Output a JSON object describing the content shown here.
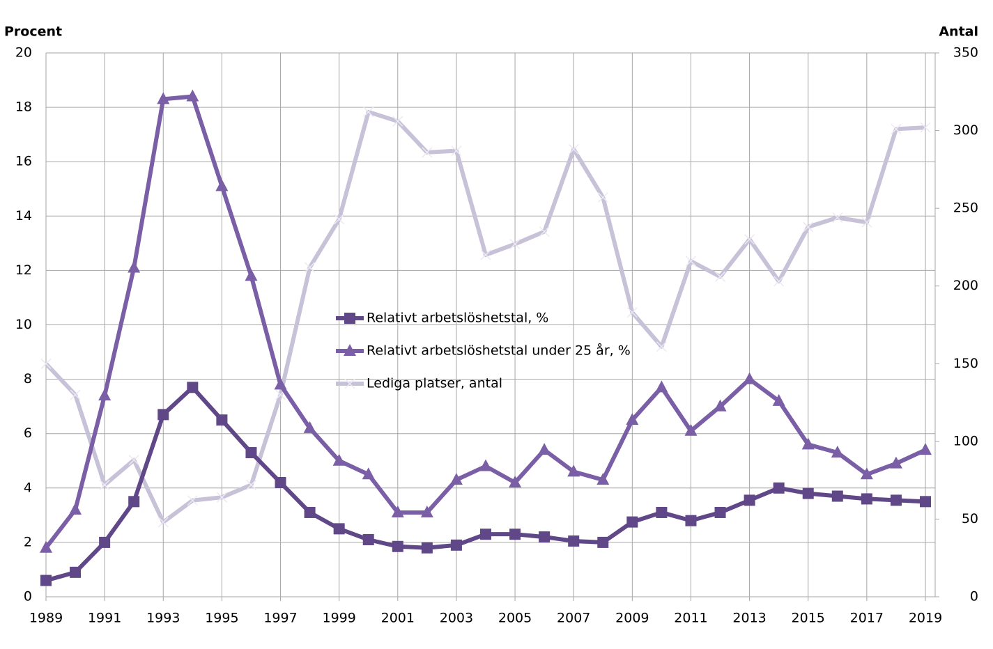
{
  "chart_data": {
    "type": "line",
    "y_title": "Procent",
    "y2_title": "Antal",
    "x": [
      1989,
      1990,
      1991,
      1992,
      1993,
      1994,
      1995,
      1996,
      1997,
      1998,
      1999,
      2000,
      2001,
      2002,
      2003,
      2004,
      2005,
      2006,
      2007,
      2008,
      2009,
      2010,
      2011,
      2012,
      2013,
      2014,
      2015,
      2016,
      2017,
      2018,
      2019
    ],
    "xlim": [
      1989,
      2019
    ],
    "xticks": [
      1989,
      1991,
      1993,
      1995,
      1997,
      1999,
      2001,
      2003,
      2005,
      2007,
      2009,
      2011,
      2013,
      2015,
      2017,
      2019
    ],
    "ylim": [
      0,
      20
    ],
    "yticks": [
      0,
      2,
      4,
      6,
      8,
      10,
      12,
      14,
      16,
      18,
      20
    ],
    "y2lim": [
      0,
      350
    ],
    "y2ticks": [
      0,
      50,
      100,
      150,
      200,
      250,
      300,
      350
    ],
    "grid": true,
    "series": [
      {
        "name": "Relativt arbetslöshetstal, %",
        "color": "#5f4788",
        "marker": "square",
        "values": [
          0.6,
          0.9,
          2.0,
          3.5,
          6.7,
          7.7,
          6.5,
          5.3,
          4.2,
          3.1,
          2.5,
          2.1,
          1.85,
          1.8,
          1.9,
          2.3,
          2.3,
          2.2,
          2.05,
          2.0,
          2.75,
          3.1,
          2.8,
          3.1,
          3.55,
          4.0,
          3.8,
          3.7,
          3.6,
          3.55,
          3.5
        ]
      },
      {
        "name": "Relativt arbetslöshetstal under 25 år, %",
        "color": "#7a5ea6",
        "marker": "triangle",
        "values": [
          1.8,
          3.2,
          7.4,
          12.1,
          18.3,
          18.4,
          15.1,
          11.8,
          7.8,
          6.2,
          5.0,
          4.5,
          3.1,
          3.1,
          4.3,
          4.8,
          4.2,
          5.4,
          4.6,
          4.3,
          6.5,
          7.7,
          6.1,
          7.0,
          8.0,
          7.2,
          5.6,
          5.3,
          4.5,
          4.9,
          5.4
        ]
      },
      {
        "name": "Lediga platser, antal",
        "color": "#c8c2d8",
        "marker": "x",
        "axis": "y2",
        "values": [
          150,
          130,
          72,
          88,
          48,
          62,
          64,
          72,
          130,
          212,
          243,
          312,
          306,
          286,
          287,
          220,
          227,
          235,
          288,
          257,
          183,
          161,
          216,
          206,
          230,
          203,
          238,
          244,
          241,
          301,
          302
        ]
      }
    ]
  }
}
